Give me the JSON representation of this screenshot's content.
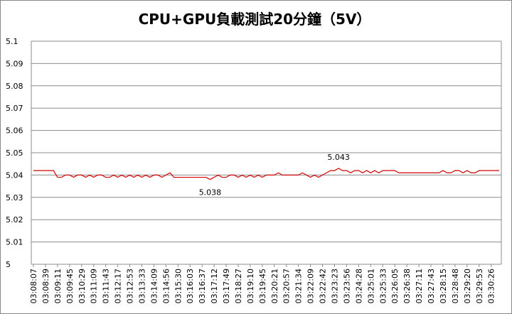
{
  "chart_data": {
    "type": "line",
    "title": "CPU+GPU負載測試20分鐘（5V）",
    "categories": [
      "03:08:07",
      null,
      null,
      "03:08:39",
      null,
      null,
      "03:09:11",
      null,
      null,
      "03:09:45",
      null,
      null,
      "03:10:29",
      null,
      null,
      "03:11:09",
      null,
      null,
      "03:11:43",
      null,
      null,
      "03:12:17",
      null,
      null,
      "03:12:53",
      null,
      null,
      "03:13:33",
      null,
      null,
      "03:14:09",
      null,
      null,
      "03:14:56",
      null,
      null,
      "03:15:30",
      null,
      null,
      "03:16:03",
      null,
      null,
      "03:16:37",
      null,
      null,
      "03:17:12",
      null,
      null,
      "03:17:49",
      null,
      null,
      "03:18:27",
      null,
      null,
      "03:19:10",
      null,
      null,
      "03:19:45",
      null,
      null,
      "03:20:21",
      null,
      null,
      "03:20:57",
      null,
      null,
      "03:21:34",
      null,
      null,
      "03:22:09",
      null,
      null,
      "03:22:42",
      null,
      null,
      "03:23:23",
      null,
      null,
      "03:23:56",
      null,
      null,
      "03:24:28",
      null,
      null,
      "03:25:01",
      null,
      null,
      "03:25:33",
      null,
      null,
      "03:26:05",
      null,
      null,
      "03:26:38",
      null,
      null,
      "03:27:11",
      null,
      null,
      "03:27:43",
      null,
      null,
      "03:28:15",
      null,
      null,
      "03:28:48",
      null,
      null,
      "03:29:20",
      null,
      null,
      "03:29:53",
      null,
      null,
      "03:30:26",
      null,
      null
    ],
    "values": [
      5.042,
      5.042,
      5.042,
      5.042,
      5.042,
      5.042,
      5.039,
      5.039,
      5.04,
      5.04,
      5.039,
      5.04,
      5.04,
      5.039,
      5.04,
      5.039,
      5.04,
      5.04,
      5.039,
      5.039,
      5.04,
      5.039,
      5.04,
      5.039,
      5.04,
      5.039,
      5.04,
      5.039,
      5.04,
      5.039,
      5.04,
      5.04,
      5.039,
      5.04,
      5.041,
      5.039,
      5.039,
      5.039,
      5.039,
      5.039,
      5.039,
      5.039,
      5.039,
      5.039,
      5.038,
      5.039,
      5.04,
      5.039,
      5.039,
      5.04,
      5.04,
      5.039,
      5.04,
      5.039,
      5.04,
      5.039,
      5.04,
      5.039,
      5.04,
      5.04,
      5.04,
      5.041,
      5.04,
      5.04,
      5.04,
      5.04,
      5.04,
      5.041,
      5.04,
      5.039,
      5.04,
      5.039,
      5.04,
      5.041,
      5.042,
      5.042,
      5.043,
      5.042,
      5.042,
      5.041,
      5.042,
      5.042,
      5.041,
      5.042,
      5.041,
      5.042,
      5.041,
      5.042,
      5.042,
      5.042,
      5.042,
      5.041,
      5.041,
      5.041,
      5.041,
      5.041,
      5.041,
      5.041,
      5.041,
      5.041,
      5.041,
      5.041,
      5.042,
      5.041,
      5.041,
      5.042,
      5.042,
      5.041,
      5.042,
      5.041,
      5.041,
      5.042,
      5.042,
      5.042,
      5.042,
      5.042,
      5.042
    ],
    "color": "#d00000",
    "annotations": [
      "5.038",
      "5.043"
    ],
    "ylim": [
      5,
      5.1
    ],
    "yticks": [
      5,
      5.01,
      5.02,
      5.03,
      5.04,
      5.05,
      5.06,
      5.07,
      5.08,
      5.09,
      5.1
    ],
    "grid": true
  }
}
